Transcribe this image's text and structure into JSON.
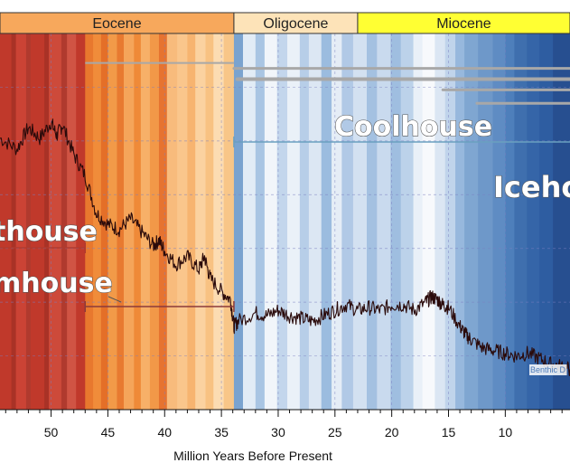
{
  "chart_data": {
    "type": "line",
    "xlabel": "Million Years Before Present",
    "xlim": [
      4.3,
      54.5
    ],
    "x_reversed": true,
    "x_ticks": [
      50,
      45,
      40,
      35,
      30,
      25,
      20,
      15,
      10
    ],
    "ylim": [
      -1,
      6
    ],
    "grid": true,
    "epochs": [
      {
        "name": "Eocene",
        "start": 56,
        "end": 33.9,
        "color": "#f7a85c"
      },
      {
        "name": "Oligocene",
        "start": 33.9,
        "end": 23.0,
        "color": "#fde3b8"
      },
      {
        "name": "Miocene",
        "start": 23.0,
        "end": 4.3,
        "color": "#ffff33"
      }
    ],
    "climate_states": [
      {
        "name": "Hothouse",
        "shown_text": "thouse",
        "start": 56,
        "end": 47,
        "color": "#b03a2e"
      },
      {
        "name": "Warmhouse",
        "shown_text": "mhouse",
        "start": 47,
        "end": 33.9,
        "color": "#8b3a3a"
      },
      {
        "name": "Coolhouse",
        "shown_text": "Coolhouse",
        "start": 33.9,
        "end": 4.3,
        "color": "#6aa0c0"
      },
      {
        "name": "Icehouse",
        "shown_text": "Iceho",
        "start": 13.9,
        "end": 4.3,
        "color": "#3a6fb0"
      }
    ],
    "series": [
      {
        "color": "#2a0a0a",
        "x": [
          54.5,
          53,
          52,
          51,
          50,
          49.5,
          49,
          48,
          47,
          46,
          45,
          44,
          43,
          42,
          41,
          40.5,
          40,
          39,
          38,
          37,
          36.5,
          36,
          35,
          34.2,
          33.9,
          33.5,
          32,
          31,
          30,
          29,
          28,
          27,
          26,
          25,
          24,
          23,
          22,
          21,
          20,
          19,
          18,
          17,
          16.5,
          16,
          15.5,
          15,
          14,
          13.5,
          13,
          12,
          11,
          10,
          9,
          8,
          7,
          6,
          5,
          4.3
        ],
        "y": [
          4.05,
          3.85,
          4.25,
          4.05,
          4.35,
          4.1,
          4.3,
          3.75,
          3.35,
          2.65,
          2.45,
          2.35,
          2.55,
          2.3,
          2.05,
          2.15,
          1.95,
          1.7,
          1.85,
          1.6,
          1.85,
          1.45,
          1.2,
          1.05,
          0.55,
          0.65,
          0.8,
          0.75,
          0.85,
          0.75,
          0.7,
          0.65,
          0.75,
          0.85,
          0.95,
          0.85,
          0.9,
          0.85,
          0.95,
          0.95,
          0.85,
          1.0,
          1.1,
          1.05,
          0.95,
          0.9,
          0.55,
          0.4,
          0.3,
          0.15,
          0.1,
          0.05,
          0.0,
          0.05,
          -0.05,
          -0.15,
          -0.2,
          -0.25
        ]
      }
    ],
    "stripes": [
      {
        "start": 54.5,
        "end": 53.5,
        "color": "#c0392b"
      },
      {
        "start": 53.5,
        "end": 53.1,
        "color": "#a93226"
      },
      {
        "start": 53.1,
        "end": 52.2,
        "color": "#cb4335"
      },
      {
        "start": 52.2,
        "end": 51.8,
        "color": "#b03a2e"
      },
      {
        "start": 51.8,
        "end": 50.6,
        "color": "#c0392b"
      },
      {
        "start": 50.6,
        "end": 50.2,
        "color": "#a93226"
      },
      {
        "start": 50.2,
        "end": 49.1,
        "color": "#cd4a3a"
      },
      {
        "start": 49.1,
        "end": 48.6,
        "color": "#b03a2e"
      },
      {
        "start": 48.6,
        "end": 47.8,
        "color": "#d05444"
      },
      {
        "start": 47.8,
        "end": 47.0,
        "color": "#c0392b"
      },
      {
        "start": 47.0,
        "end": 46.3,
        "color": "#e8782e"
      },
      {
        "start": 46.3,
        "end": 45.6,
        "color": "#f08c3a"
      },
      {
        "start": 45.6,
        "end": 45.0,
        "color": "#e46f28"
      },
      {
        "start": 45.0,
        "end": 44.2,
        "color": "#f29a48"
      },
      {
        "start": 44.2,
        "end": 43.6,
        "color": "#e87a30"
      },
      {
        "start": 43.6,
        "end": 42.7,
        "color": "#f5a55a"
      },
      {
        "start": 42.7,
        "end": 42.1,
        "color": "#ef8a38"
      },
      {
        "start": 42.1,
        "end": 41.3,
        "color": "#f7b068"
      },
      {
        "start": 41.3,
        "end": 40.5,
        "color": "#f29848"
      },
      {
        "start": 40.5,
        "end": 39.8,
        "color": "#e67330"
      },
      {
        "start": 39.8,
        "end": 38.9,
        "color": "#f8bb7c"
      },
      {
        "start": 38.9,
        "end": 38.0,
        "color": "#fac68c"
      },
      {
        "start": 38.0,
        "end": 37.3,
        "color": "#f7b470"
      },
      {
        "start": 37.3,
        "end": 36.4,
        "color": "#fbd2a0"
      },
      {
        "start": 36.4,
        "end": 35.7,
        "color": "#f8c282"
      },
      {
        "start": 35.7,
        "end": 34.8,
        "color": "#fcdcb2"
      },
      {
        "start": 34.8,
        "end": 33.9,
        "color": "#f8c688"
      },
      {
        "start": 33.9,
        "end": 33.1,
        "color": "#7aa3cf"
      },
      {
        "start": 33.1,
        "end": 32.0,
        "color": "#e2ecf6"
      },
      {
        "start": 32.0,
        "end": 31.2,
        "color": "#a9c5e3"
      },
      {
        "start": 31.2,
        "end": 30.1,
        "color": "#f1f5fa"
      },
      {
        "start": 30.1,
        "end": 29.2,
        "color": "#c3d6ec"
      },
      {
        "start": 29.2,
        "end": 28.1,
        "color": "#eaf1f8"
      },
      {
        "start": 28.1,
        "end": 27.3,
        "color": "#b7cee8"
      },
      {
        "start": 27.3,
        "end": 26.2,
        "color": "#dce7f3"
      },
      {
        "start": 26.2,
        "end": 25.3,
        "color": "#9bbcdf"
      },
      {
        "start": 25.3,
        "end": 24.4,
        "color": "#e5edf6"
      },
      {
        "start": 24.4,
        "end": 23.4,
        "color": "#b1c9e6"
      },
      {
        "start": 23.4,
        "end": 22.2,
        "color": "#d3e1f1"
      },
      {
        "start": 22.2,
        "end": 21.3,
        "color": "#a4c1e1"
      },
      {
        "start": 21.3,
        "end": 20.1,
        "color": "#c9daee"
      },
      {
        "start": 20.1,
        "end": 19.2,
        "color": "#9fbee0"
      },
      {
        "start": 19.2,
        "end": 18.1,
        "color": "#bcd2ea"
      },
      {
        "start": 18.1,
        "end": 17.3,
        "color": "#e9f0f8"
      },
      {
        "start": 17.3,
        "end": 16.2,
        "color": "#f7f9fc"
      },
      {
        "start": 16.2,
        "end": 15.3,
        "color": "#dbe6f3"
      },
      {
        "start": 15.3,
        "end": 14.4,
        "color": "#c0d4eb"
      },
      {
        "start": 14.4,
        "end": 13.6,
        "color": "#97b8dd"
      },
      {
        "start": 13.6,
        "end": 12.4,
        "color": "#7fa6d1"
      },
      {
        "start": 12.4,
        "end": 11.1,
        "color": "#6e98c9"
      },
      {
        "start": 11.1,
        "end": 10.0,
        "color": "#5f8cc3"
      },
      {
        "start": 10.0,
        "end": 9.2,
        "color": "#4e7fbb"
      },
      {
        "start": 9.2,
        "end": 8.1,
        "color": "#3f6fae"
      },
      {
        "start": 8.1,
        "end": 7.0,
        "color": "#3565a8"
      },
      {
        "start": 7.0,
        "end": 5.8,
        "color": "#2e5da1"
      },
      {
        "start": 5.8,
        "end": 4.3,
        "color": "#274f90"
      }
    ],
    "source_tag": "Benthic D"
  }
}
